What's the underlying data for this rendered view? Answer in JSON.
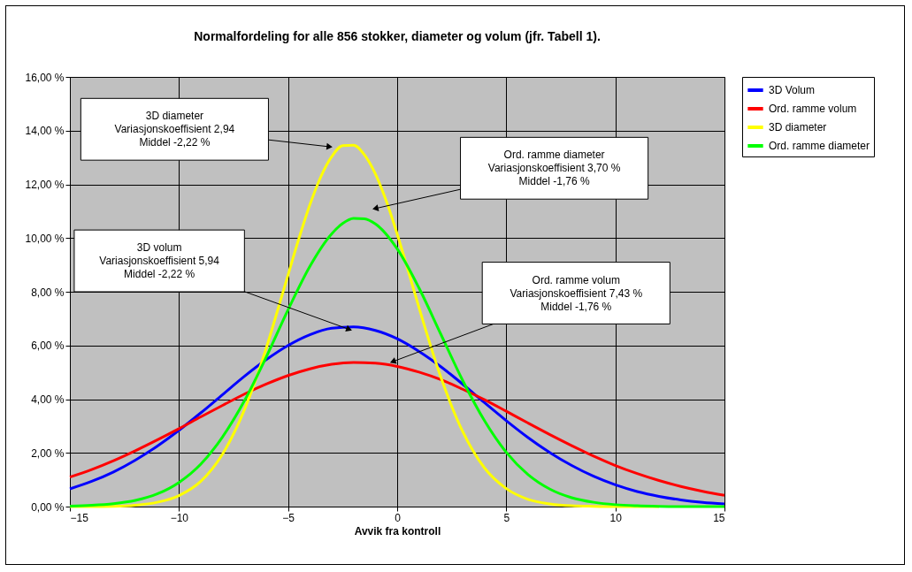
{
  "chart_data": {
    "type": "line",
    "title": "Normalfordeling for alle 856 stokker, diameter og volum (jfr. Tabell 1).",
    "xlabel": "Avvik fra kontroll",
    "xlim": [
      -15,
      15
    ],
    "xticks": [
      -15,
      -10,
      -5,
      0,
      5,
      10,
      15
    ],
    "ylim": [
      0,
      16
    ],
    "yticks": [
      {
        "value": 0,
        "label": "0,00 %"
      },
      {
        "value": 2,
        "label": "2,00 %"
      },
      {
        "value": 4,
        "label": "4,00 %"
      },
      {
        "value": 6,
        "label": "6,00 %"
      },
      {
        "value": 8,
        "label": "8,00 %"
      },
      {
        "value": 10,
        "label": "10,00 %"
      },
      {
        "value": 12,
        "label": "12,00 %"
      },
      {
        "value": 14,
        "label": "14,00 %"
      },
      {
        "value": 16,
        "label": "16,00 %"
      }
    ],
    "grid": true,
    "legend": "right",
    "line_style": "solid",
    "marker": "none",
    "series": [
      {
        "name": "3D Volum",
        "color": "#0000ff",
        "x": [
          -15,
          -14,
          -13,
          -12,
          -11,
          -10,
          -9,
          -8,
          -7,
          -6,
          -5,
          -4,
          -3,
          -2,
          -1,
          0,
          1,
          2,
          3,
          4,
          5,
          6,
          7,
          8,
          9,
          10,
          11,
          12,
          13,
          14,
          15
        ],
        "values": [
          0.66,
          0.94,
          1.29,
          1.73,
          2.25,
          2.84,
          3.49,
          4.17,
          4.85,
          5.47,
          6.0,
          6.4,
          6.64,
          6.69,
          6.56,
          6.25,
          5.78,
          5.21,
          4.56,
          3.87,
          3.2,
          2.57,
          2.01,
          1.53,
          1.13,
          0.81,
          0.56,
          0.38,
          0.25,
          0.16,
          0.1
        ]
      },
      {
        "name": "Ord. ramme volum",
        "color": "#ff0000",
        "x": [
          -15,
          -14,
          -13,
          -12,
          -11,
          -10,
          -9,
          -8,
          -7,
          -6,
          -5,
          -4,
          -3,
          -2,
          -1,
          0,
          1,
          2,
          3,
          4,
          5,
          6,
          7,
          8,
          9,
          10,
          11,
          12,
          13,
          14,
          15
        ],
        "values": [
          1.1,
          1.38,
          1.71,
          2.08,
          2.48,
          2.9,
          3.34,
          3.77,
          4.19,
          4.56,
          4.88,
          5.13,
          5.3,
          5.37,
          5.34,
          5.22,
          5.01,
          4.73,
          4.37,
          3.98,
          3.55,
          3.11,
          2.68,
          2.27,
          1.88,
          1.53,
          1.23,
          0.97,
          0.75,
          0.57,
          0.42
        ]
      },
      {
        "name": "3D diameter",
        "color": "#ffff00",
        "x": [
          -15,
          -14,
          -13,
          -12,
          -11,
          -10,
          -9,
          -8,
          -7,
          -6,
          -5.5,
          -5,
          -4.5,
          -4,
          -3.5,
          -3,
          -2.5,
          -2,
          -1.5,
          -1,
          -0.5,
          0,
          0.5,
          1,
          2,
          3,
          4,
          5,
          6,
          7,
          8,
          9,
          10,
          11,
          12
        ],
        "values": [
          0,
          0,
          0.01,
          0.05,
          0.16,
          0.41,
          0.94,
          1.96,
          3.61,
          5.9,
          7.25,
          8.63,
          9.99,
          11.24,
          12.28,
          13.03,
          13.44,
          13.46,
          13.1,
          12.39,
          11.38,
          10.15,
          8.8,
          7.41,
          4.82,
          2.8,
          1.44,
          0.67,
          0.27,
          0.1,
          0.03,
          0.01,
          0,
          0,
          0
        ]
      },
      {
        "name": "Ord. ramme diameter",
        "color": "#00ff00",
        "x": [
          -15,
          -14,
          -13,
          -12,
          -11,
          -10,
          -9,
          -8,
          -7,
          -6,
          -5,
          -4,
          -3,
          -2.5,
          -2,
          -1.5,
          -1,
          0,
          1,
          2,
          3,
          4,
          5,
          6,
          7,
          8,
          9,
          10,
          11,
          12,
          13,
          14,
          15
        ],
        "values": [
          0.02,
          0.05,
          0.11,
          0.23,
          0.47,
          0.9,
          1.58,
          2.6,
          3.94,
          5.57,
          7.33,
          8.95,
          10.16,
          10.54,
          10.73,
          10.72,
          10.53,
          9.6,
          8.14,
          6.42,
          4.7,
          3.2,
          2.02,
          1.19,
          0.65,
          0.33,
          0.16,
          0.07,
          0.03,
          0.01,
          0,
          0,
          0
        ]
      }
    ],
    "annotations": [
      {
        "text": "3D diameter\nVariasjonskoeffisient 2,94\nMiddel -2,22 %",
        "x": -3.1,
        "y": 13.4
      },
      {
        "text": "Ord. ramme diameter\nVariasjonskoeffisient 3,70 %\nMiddel  -1,76 %",
        "x": -1.0,
        "y": 11.1
      },
      {
        "text": "3D volum\nVariasjonskoeffisient 5,94\nMiddel -2,22 %",
        "x": -2.2,
        "y": 6.6
      },
      {
        "text": "Ord. ramme volum\nVariasjonskoeffisient 7,43 %\nMiddel -1,76 %",
        "x": -0.2,
        "y": 5.4
      }
    ]
  }
}
